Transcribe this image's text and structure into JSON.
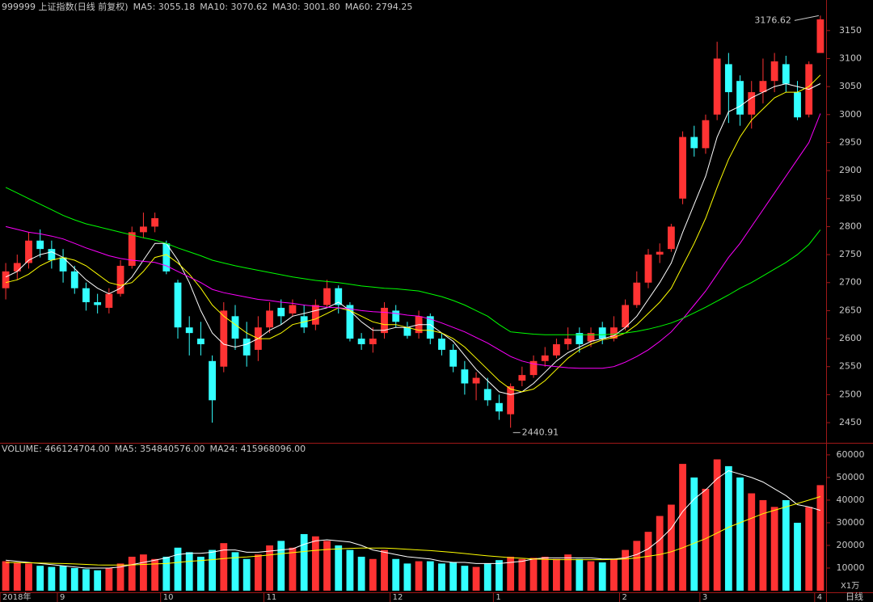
{
  "chart_data": [
    {
      "type": "candlestick",
      "title": "999999 上证指数(日线 前复权)",
      "period_label": "日线",
      "categories": [
        "2018年",
        null,
        null,
        null,
        null,
        "9",
        null,
        null,
        null,
        null,
        null,
        null,
        null,
        null,
        "10",
        null,
        null,
        null,
        null,
        null,
        null,
        null,
        null,
        "11",
        null,
        null,
        null,
        null,
        null,
        null,
        null,
        null,
        null,
        null,
        "12",
        null,
        null,
        null,
        null,
        null,
        null,
        null,
        null,
        "1",
        null,
        null,
        null,
        null,
        null,
        null,
        null,
        null,
        null,
        null,
        "2",
        null,
        null,
        null,
        null,
        null,
        null,
        "3",
        null,
        null,
        null,
        null,
        null,
        null,
        null,
        null,
        null,
        "4"
      ],
      "open": [
        2690,
        2720,
        2735,
        2775,
        2760,
        2745,
        2720,
        2690,
        2665,
        2655,
        2680,
        2730,
        2790,
        2800,
        2770,
        2700,
        2620,
        2600,
        2560,
        2550,
        2640,
        2600,
        2580,
        2620,
        2655,
        2645,
        2640,
        2625,
        2660,
        2690,
        2660,
        2600,
        2590,
        2610,
        2650,
        2620,
        2610,
        2640,
        2600,
        2580,
        2545,
        2520,
        2510,
        2485,
        2465,
        2525,
        2535,
        2560,
        2570,
        2590,
        2610,
        2595,
        2620,
        2600,
        2620,
        2660,
        2700,
        2750,
        2760,
        2850,
        2960,
        2940,
        3000,
        3090,
        3060,
        3000,
        3040,
        3060,
        3090,
        3040,
        3000,
        3110
      ],
      "high": [
        2735,
        2750,
        2790,
        2795,
        2775,
        2760,
        2730,
        2700,
        2680,
        2690,
        2740,
        2800,
        2825,
        2825,
        2775,
        2705,
        2640,
        2630,
        2570,
        2665,
        2660,
        2630,
        2640,
        2665,
        2670,
        2670,
        2660,
        2670,
        2705,
        2695,
        2665,
        2610,
        2620,
        2665,
        2660,
        2630,
        2650,
        2645,
        2610,
        2590,
        2560,
        2540,
        2530,
        2500,
        2520,
        2550,
        2570,
        2585,
        2600,
        2620,
        2620,
        2620,
        2630,
        2640,
        2670,
        2720,
        2760,
        2770,
        2805,
        2970,
        2980,
        3000,
        3130,
        3110,
        3070,
        3060,
        3100,
        3110,
        3105,
        3060,
        3095,
        3176.62
      ],
      "low": [
        2670,
        2705,
        2725,
        2745,
        2725,
        2700,
        2680,
        2650,
        2645,
        2645,
        2675,
        2725,
        2780,
        2790,
        2715,
        2600,
        2570,
        2570,
        2450,
        2540,
        2580,
        2550,
        2560,
        2610,
        2625,
        2640,
        2610,
        2615,
        2655,
        2645,
        2595,
        2580,
        2575,
        2600,
        2620,
        2600,
        2600,
        2590,
        2570,
        2540,
        2500,
        2490,
        2480,
        2455,
        2440.91,
        2515,
        2530,
        2550,
        2565,
        2580,
        2575,
        2585,
        2590,
        2595,
        2615,
        2655,
        2690,
        2735,
        2755,
        2840,
        2925,
        2930,
        2990,
        2985,
        2980,
        2975,
        3020,
        3040,
        3040,
        2990,
        2995,
        3110
      ],
      "close": [
        2720,
        2735,
        2775,
        2760,
        2740,
        2720,
        2690,
        2665,
        2660,
        2680,
        2730,
        2790,
        2800,
        2815,
        2720,
        2620,
        2610,
        2590,
        2490,
        2650,
        2600,
        2570,
        2620,
        2650,
        2640,
        2660,
        2620,
        2660,
        2690,
        2660,
        2600,
        2590,
        2600,
        2655,
        2630,
        2605,
        2640,
        2600,
        2580,
        2550,
        2520,
        2530,
        2490,
        2470,
        2515,
        2535,
        2560,
        2570,
        2590,
        2600,
        2590,
        2610,
        2600,
        2620,
        2660,
        2700,
        2750,
        2755,
        2800,
        2960,
        2940,
        2990,
        3100,
        3040,
        3000,
        3040,
        3060,
        3095,
        3055,
        2995,
        3090,
        3170
      ],
      "up_color": "#ff3333",
      "down_color": "#33ffff",
      "series": [
        {
          "name": "MA5: 3055.18",
          "color": "#ffffff",
          "values": [
            2710,
            2720,
            2740,
            2750,
            2755,
            2745,
            2725,
            2705,
            2690,
            2680,
            2690,
            2710,
            2740,
            2770,
            2770,
            2740,
            2700,
            2650,
            2610,
            2590,
            2585,
            2590,
            2600,
            2615,
            2625,
            2640,
            2645,
            2650,
            2655,
            2665,
            2650,
            2630,
            2615,
            2615,
            2620,
            2620,
            2625,
            2625,
            2610,
            2595,
            2570,
            2545,
            2525,
            2505,
            2500,
            2505,
            2520,
            2540,
            2560,
            2575,
            2585,
            2595,
            2600,
            2605,
            2620,
            2640,
            2670,
            2700,
            2735,
            2790,
            2840,
            2890,
            2960,
            3005,
            3015,
            3030,
            3040,
            3050,
            3055,
            3050,
            3045,
            3055.18
          ]
        },
        {
          "name": "MA10: 3070.62",
          "color": "#ffff00",
          "values": [
            2700,
            2705,
            2715,
            2730,
            2740,
            2745,
            2740,
            2730,
            2715,
            2700,
            2695,
            2700,
            2720,
            2745,
            2750,
            2735,
            2715,
            2690,
            2660,
            2640,
            2625,
            2610,
            2600,
            2600,
            2610,
            2625,
            2630,
            2635,
            2645,
            2655,
            2650,
            2640,
            2630,
            2625,
            2625,
            2620,
            2615,
            2615,
            2610,
            2600,
            2585,
            2565,
            2545,
            2525,
            2510,
            2505,
            2510,
            2525,
            2545,
            2565,
            2580,
            2590,
            2598,
            2602,
            2610,
            2625,
            2645,
            2665,
            2690,
            2730,
            2770,
            2815,
            2870,
            2920,
            2960,
            2990,
            3010,
            3030,
            3040,
            3040,
            3050,
            3070.62
          ]
        },
        {
          "name": "MA30: 3001.80",
          "color": "#ff00ff",
          "values": [
            2800,
            2795,
            2790,
            2787,
            2783,
            2778,
            2770,
            2762,
            2755,
            2748,
            2743,
            2740,
            2738,
            2736,
            2730,
            2720,
            2710,
            2700,
            2688,
            2682,
            2678,
            2674,
            2670,
            2668,
            2665,
            2663,
            2660,
            2658,
            2656,
            2655,
            2653,
            2650,
            2648,
            2647,
            2645,
            2642,
            2640,
            2635,
            2628,
            2620,
            2612,
            2602,
            2592,
            2580,
            2568,
            2560,
            2555,
            2552,
            2550,
            2548,
            2547,
            2547,
            2547,
            2550,
            2558,
            2568,
            2580,
            2595,
            2612,
            2635,
            2660,
            2685,
            2715,
            2745,
            2770,
            2800,
            2830,
            2860,
            2890,
            2920,
            2950,
            3001.8
          ]
        },
        {
          "name": "MA60: 2794.25",
          "color": "#00ff00",
          "values": [
            2870,
            2860,
            2850,
            2840,
            2830,
            2820,
            2812,
            2805,
            2800,
            2795,
            2790,
            2785,
            2780,
            2776,
            2770,
            2762,
            2755,
            2748,
            2740,
            2735,
            2730,
            2726,
            2722,
            2718,
            2714,
            2710,
            2707,
            2704,
            2702,
            2700,
            2697,
            2694,
            2692,
            2690,
            2689,
            2687,
            2685,
            2680,
            2675,
            2668,
            2660,
            2650,
            2640,
            2625,
            2612,
            2610,
            2608,
            2607,
            2607,
            2607,
            2607,
            2607,
            2607,
            2608,
            2610,
            2613,
            2617,
            2622,
            2628,
            2636,
            2646,
            2656,
            2667,
            2678,
            2690,
            2700,
            2712,
            2724,
            2736,
            2750,
            2768,
            2794.25
          ]
        }
      ],
      "ylim": [
        2414,
        3193
      ],
      "yticks": [
        2450,
        2500,
        2550,
        2600,
        2650,
        2700,
        2750,
        2800,
        2850,
        2900,
        2950,
        3000,
        3050,
        3100,
        3150
      ]
    },
    {
      "type": "bar",
      "title": "VOLUME: 466124704.00",
      "y_unit": "X1万",
      "values": [
        13000,
        12500,
        12000,
        11000,
        10500,
        11000,
        10000,
        9500,
        9000,
        10000,
        12000,
        15000,
        16000,
        14000,
        15000,
        19000,
        17000,
        15000,
        18000,
        21000,
        17000,
        14000,
        16000,
        20000,
        22000,
        19000,
        25000,
        24000,
        22000,
        20000,
        18000,
        15000,
        14000,
        18000,
        14000,
        12000,
        13000,
        13000,
        12000,
        12500,
        11000,
        10500,
        12000,
        13500,
        15000,
        14000,
        14500,
        15000,
        14000,
        16000,
        14000,
        13000,
        12500,
        14000,
        18000,
        22000,
        26000,
        33000,
        38000,
        56000,
        50000,
        45000,
        58000,
        55000,
        50000,
        43000,
        40000,
        37000,
        40000,
        30000,
        37000,
        46612
      ],
      "series": [
        {
          "name": "MA5: 354840576.00",
          "color": "#ffffff",
          "values": [
            13500,
            13000,
            12500,
            12000,
            11500,
            11000,
            10500,
            10000,
            10000,
            10000,
            10500,
            11500,
            12500,
            13500,
            14500,
            16000,
            16500,
            16500,
            17000,
            18000,
            18000,
            17000,
            17000,
            17500,
            18000,
            18500,
            20500,
            22000,
            22500,
            22000,
            21500,
            20000,
            18000,
            17000,
            16000,
            15000,
            14500,
            14000,
            13000,
            12500,
            12500,
            12000,
            12000,
            12000,
            12500,
            13000,
            14000,
            14500,
            14500,
            14500,
            14500,
            14500,
            14000,
            14000,
            14500,
            16000,
            18500,
            22500,
            27500,
            35000,
            40500,
            44500,
            49500,
            53000,
            51500,
            50000,
            48000,
            45000,
            42000,
            38000,
            37000,
            35484
          ]
        },
        {
          "name": "MA24: 415968096.00",
          "color": "#ffff00",
          "values": [
            12500,
            12400,
            12300,
            12200,
            12100,
            12000,
            11800,
            11600,
            11400,
            11300,
            11300,
            11400,
            11600,
            11800,
            12000,
            12500,
            13000,
            13300,
            13700,
            14200,
            14600,
            14900,
            15300,
            15800,
            16300,
            16800,
            17300,
            17800,
            18200,
            18500,
            18700,
            18800,
            18800,
            18800,
            18600,
            18300,
            18000,
            17700,
            17300,
            16900,
            16400,
            15900,
            15400,
            15000,
            14600,
            14300,
            14000,
            13800,
            13700,
            13700,
            13700,
            13700,
            13700,
            13800,
            14000,
            14500,
            15200,
            16000,
            17200,
            19000,
            21000,
            23000,
            25500,
            28000,
            30000,
            32000,
            34000,
            35500,
            37000,
            38500,
            40000,
            41597
          ]
        }
      ],
      "ylim": [
        0,
        64600
      ],
      "yticks": [
        10000,
        20000,
        30000,
        40000,
        50000,
        60000
      ]
    }
  ]
}
